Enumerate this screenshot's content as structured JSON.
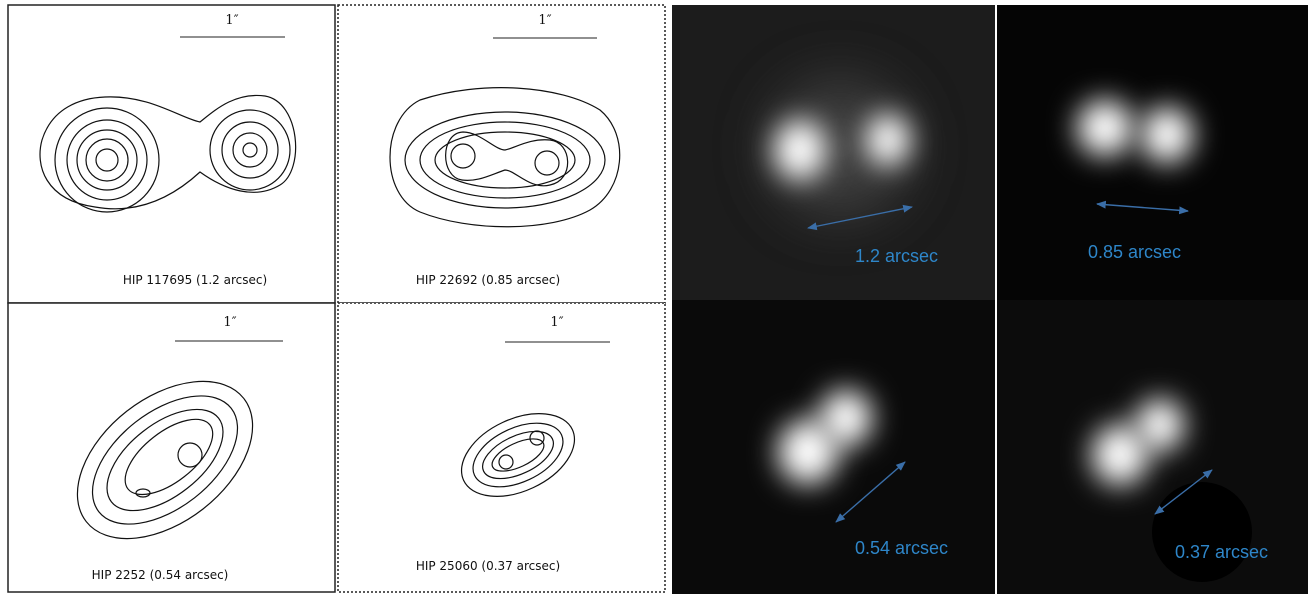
{
  "contour_panels": [
    {
      "scale_label": "1″",
      "caption": "HIP 117695 (1.2 arcsec)"
    },
    {
      "scale_label": "1″",
      "caption": "HIP 22692 (0.85 arcsec)"
    },
    {
      "scale_label": "1″",
      "caption": "HIP 2252 (0.54 arcsec)"
    },
    {
      "scale_label": "1″",
      "caption": "HIP 25060 (0.37 arcsec)"
    }
  ],
  "image_panels": [
    {
      "label": "1.2 arcsec"
    },
    {
      "label": "0.85 arcsec"
    },
    {
      "label": "0.54 arcsec"
    },
    {
      "label": "0.37 arcsec"
    }
  ]
}
